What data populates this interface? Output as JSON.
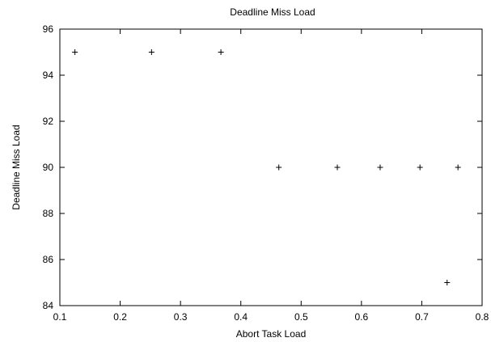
{
  "chart_data": {
    "type": "scatter",
    "title": "Deadline Miss Load",
    "xlabel": "Abort Task Load",
    "ylabel": "Deadline Miss Load",
    "xlim": [
      0.1,
      0.8
    ],
    "ylim": [
      84,
      96
    ],
    "xticks": [
      "0.1",
      "0.2",
      "0.3",
      "0.4",
      "0.5",
      "0.6",
      "0.7",
      "0.8"
    ],
    "yticks": [
      "84",
      "86",
      "88",
      "90",
      "92",
      "94",
      "96"
    ],
    "grid": false,
    "marker": "+",
    "colors": {
      "axis": "#000000",
      "marker": "#000000"
    },
    "points": [
      {
        "x": 0.125,
        "y": 95
      },
      {
        "x": 0.252,
        "y": 95
      },
      {
        "x": 0.367,
        "y": 95
      },
      {
        "x": 0.463,
        "y": 90
      },
      {
        "x": 0.56,
        "y": 90
      },
      {
        "x": 0.631,
        "y": 90
      },
      {
        "x": 0.697,
        "y": 90
      },
      {
        "x": 0.742,
        "y": 85
      },
      {
        "x": 0.76,
        "y": 90
      }
    ]
  }
}
